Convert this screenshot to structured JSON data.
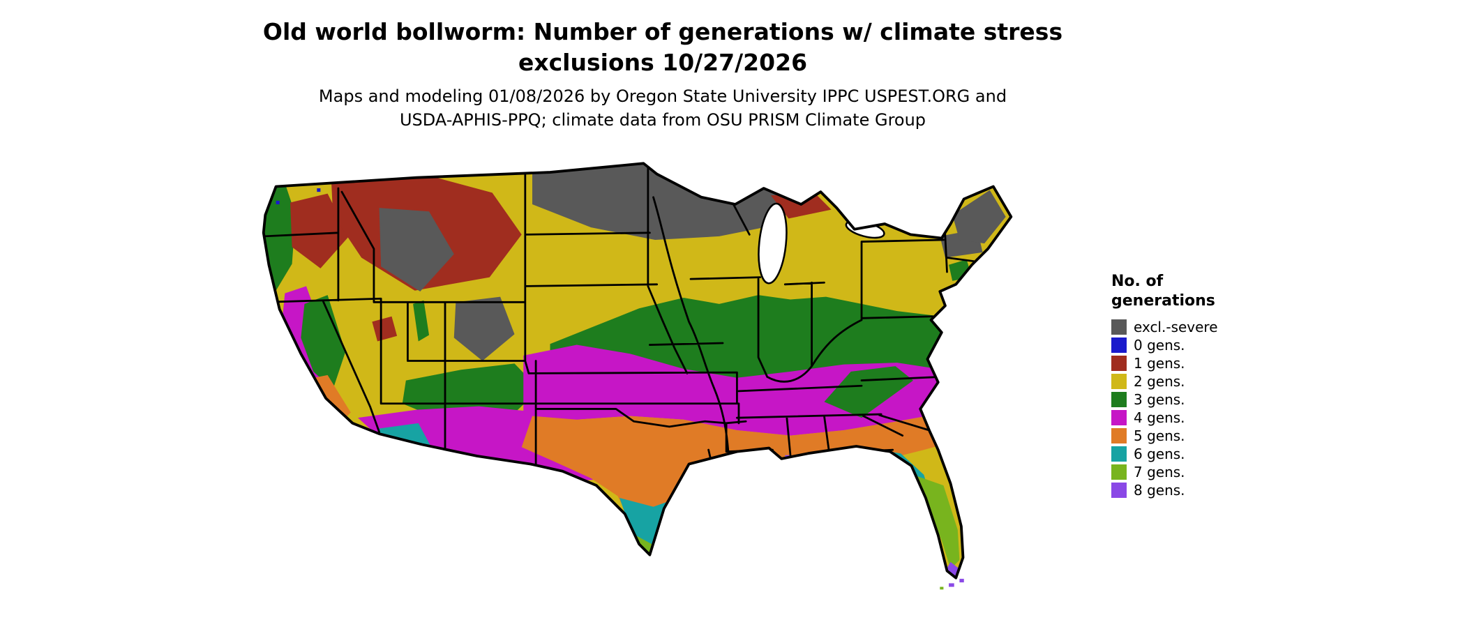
{
  "title": {
    "line1": "Old world bollworm: Number of generations w/ climate stress",
    "line2": "exclusions 10/27/2026"
  },
  "subtitle": {
    "line1": "Maps and modeling 01/08/2026 by Oregon State University IPPC USPEST.ORG and",
    "line2": "USDA-APHIS-PPQ; climate data from OSU PRISM Climate Group"
  },
  "legend": {
    "title_line1": "No. of",
    "title_line2": "generations",
    "items": [
      {
        "key": "excl",
        "label": "excl.-severe",
        "color": "#595959"
      },
      {
        "key": "0",
        "label": "0 gens.",
        "color": "#1a1acc"
      },
      {
        "key": "1",
        "label": "1 gens.",
        "color": "#a02d1f"
      },
      {
        "key": "2",
        "label": "2 gens.",
        "color": "#d0b818"
      },
      {
        "key": "3",
        "label": "3 gens.",
        "color": "#1e7d1e"
      },
      {
        "key": "4",
        "label": "4 gens.",
        "color": "#c616c6"
      },
      {
        "key": "5",
        "label": "5 gens.",
        "color": "#e07b26"
      },
      {
        "key": "6",
        "label": "6 gens.",
        "color": "#17a3a3"
      },
      {
        "key": "7",
        "label": "7 gens.",
        "color": "#78b41e"
      },
      {
        "key": "8",
        "label": "8 gens.",
        "color": "#8a48e6"
      }
    ]
  },
  "map": {
    "region": "Conterminous United States",
    "type": "categorical raster map of generation counts",
    "zones": [
      {
        "class": "excl.-severe",
        "areas": "northern plains and upper Midwest (ND, MN, WI, upper MI), northern Maine, Adirondacks, high Rockies of ID/WY and CO"
      },
      {
        "class": "0 gens.",
        "areas": "small specks in northwest Washington"
      },
      {
        "class": "1 gens.",
        "areas": "Montana and northern Rockies, eastern WA/OR highlands, upper Michigan"
      },
      {
        "class": "2 gens.",
        "areas": "Great Basin, northern plains (SD, NE), Michigan, New York and New England"
      },
      {
        "class": "3 gens.",
        "areas": "mid-latitude band KS-IA-IL-IN-OH-PA-VA, Appalachians, Cascades, Sierra Nevada, AZ/NM mountains"
      },
      {
        "class": "4 gens.",
        "areas": "OK, southern KS, AR, TN, NC, eastern VA, west TX, NM, southern AZ, California Central Valley"
      },
      {
        "class": "5 gens.",
        "areas": "central TX, LA, MS, AL, GA, SC, southern California"
      },
      {
        "class": "6 gens.",
        "areas": "Gulf Coast strip, south Texas, southern Arizona desert, north Florida"
      },
      {
        "class": "7 gens.",
        "areas": "central Florida, lower Rio Grande valley"
      },
      {
        "class": "8 gens.",
        "areas": "south Florida tip, Florida Keys and coastal specks"
      }
    ]
  }
}
